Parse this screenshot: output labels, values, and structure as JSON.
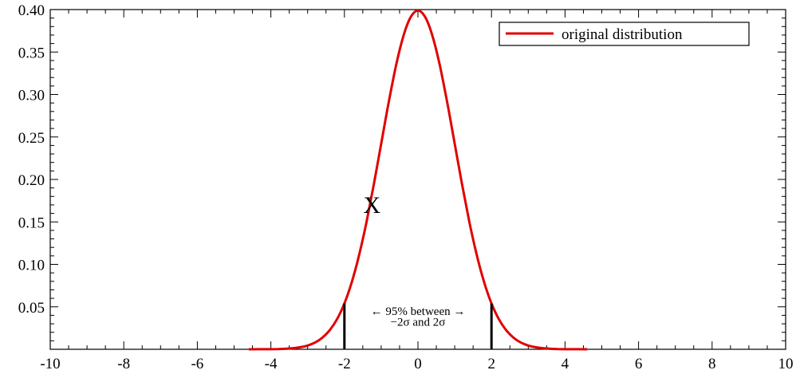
{
  "chart_data": {
    "type": "line",
    "title": "",
    "xlabel": "",
    "ylabel": "",
    "xlim": [
      -10,
      10
    ],
    "ylim": [
      0,
      0.4
    ],
    "x_ticks": [
      "-10",
      "-8",
      "-6",
      "-4",
      "-2",
      "0",
      "2",
      "4",
      "6",
      "8",
      "10"
    ],
    "y_ticks": [
      "0.05",
      "0.10",
      "0.15",
      "0.20",
      "0.25",
      "0.30",
      "0.35",
      "0.40"
    ],
    "grid": false,
    "legend_position": "top-right",
    "series": [
      {
        "name": "original distribution",
        "color": "#e00000",
        "x": [
          -4.6,
          -4.2,
          -3.8,
          -3.5,
          -3.2,
          -3.0,
          -2.8,
          -2.6,
          -2.4,
          -2.2,
          -2.0,
          -1.8,
          -1.6,
          -1.4,
          -1.2,
          -1.0,
          -0.8,
          -0.6,
          -0.4,
          -0.2,
          0.0,
          0.2,
          0.4,
          0.6,
          0.8,
          1.0,
          1.2,
          1.4,
          1.6,
          1.8,
          2.0,
          2.2,
          2.4,
          2.6,
          2.8,
          3.0,
          3.2,
          3.5,
          3.8,
          4.2,
          4.6
        ],
        "y": [
          0.0,
          0.0001,
          0.0003,
          0.0009,
          0.0024,
          0.0044,
          0.0079,
          0.0136,
          0.0224,
          0.0355,
          0.054,
          0.079,
          0.1109,
          0.1497,
          0.1942,
          0.242,
          0.2897,
          0.3332,
          0.3683,
          0.391,
          0.3989,
          0.391,
          0.3683,
          0.3332,
          0.2897,
          0.242,
          0.1942,
          0.1497,
          0.1109,
          0.079,
          0.054,
          0.0355,
          0.0224,
          0.0136,
          0.0079,
          0.0044,
          0.0024,
          0.0009,
          0.0003,
          0.0001,
          0.0
        ]
      }
    ],
    "vertical_markers": [
      {
        "x": -2,
        "y_top": 0.054,
        "color": "#000000"
      },
      {
        "x": 2,
        "y_top": 0.054,
        "color": "#000000"
      }
    ],
    "annotations": {
      "interval_line1": "← 95% between →",
      "interval_line2": "−2σ and 2σ",
      "point_marker": {
        "text": "X",
        "x": -1.25,
        "y": 0.17
      }
    }
  }
}
